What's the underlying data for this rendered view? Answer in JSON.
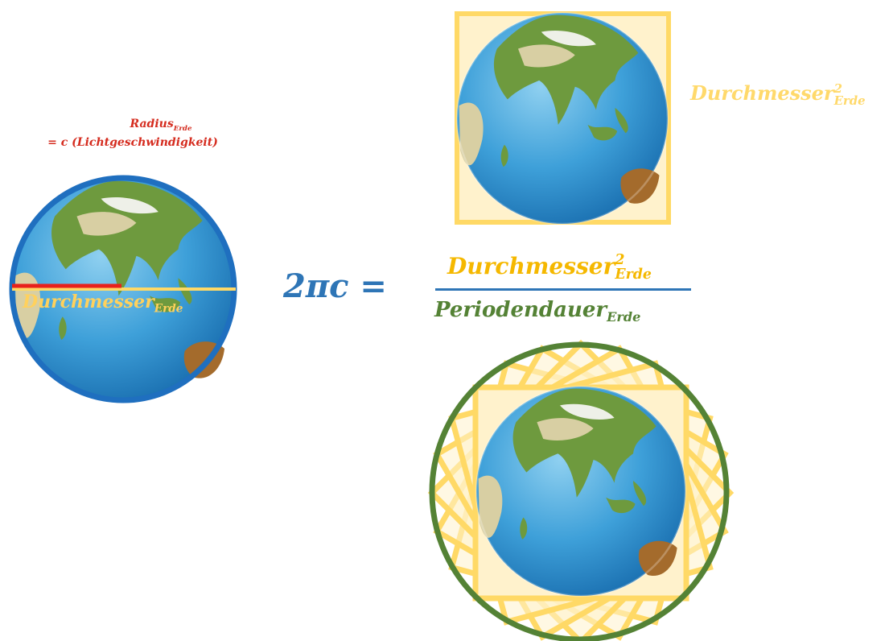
{
  "colors": {
    "red": "#d52b1e",
    "blue": "#2e75b6",
    "ocean": "#3ea0d9",
    "yellow": "#ffd15c",
    "yellow_fill": "#fff2cc",
    "green": "#548235",
    "land_green": "#6e9a3e",
    "land_desert": "#d8cfa3",
    "land_brown": "#a46b2c"
  },
  "icons": [
    "earth-globe-left",
    "earth-globe-top",
    "earth-globe-bottom",
    "rotated-squares-pattern"
  ],
  "labels": {
    "radius_main": "Radius",
    "radius_sub": "Erde",
    "radius_equals": "= c (Lichtgeschwindigkeit)",
    "diameter_main": "Durchmesser",
    "diameter_sub": "Erde",
    "diameter_sq_main": "Durchmesser",
    "diameter_sq_sup": "2",
    "diameter_sq_sub": "Erde",
    "equation_left": "2πc =",
    "fraction_num_main": "Durchmesser",
    "fraction_num_sup": "2",
    "fraction_num_sub": "Erde",
    "fraction_den_main": "Periodendauer",
    "fraction_den_sub": "Erde"
  }
}
